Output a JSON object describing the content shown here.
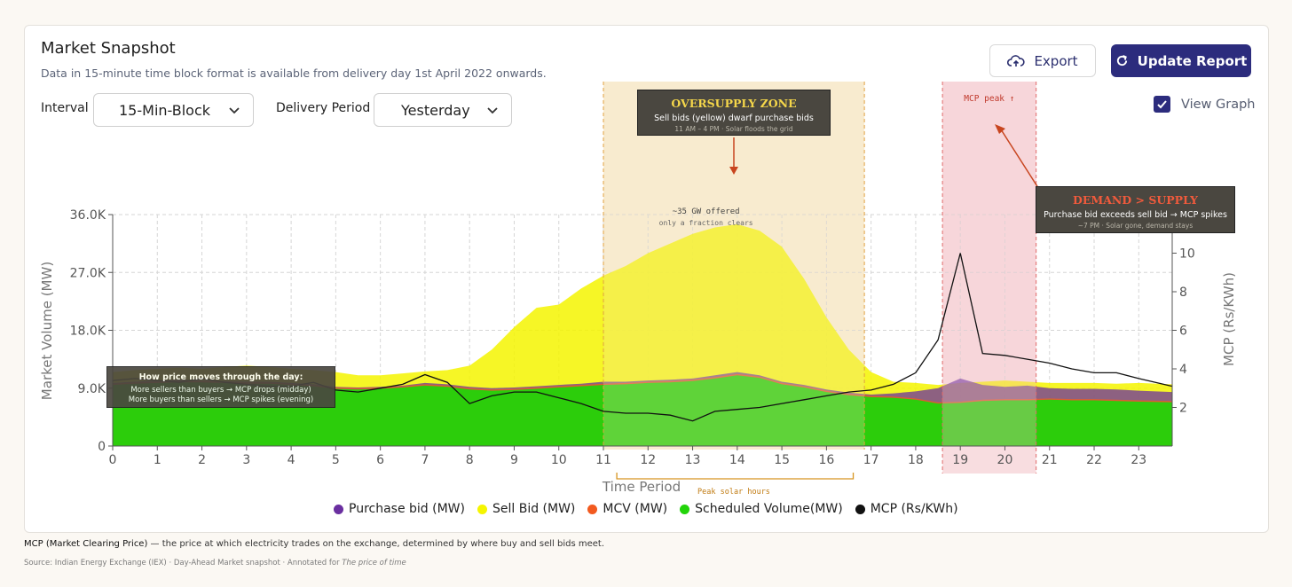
{
  "header": {
    "title": "Market Snapshot",
    "subtitle": "Data in 15-minute time block format is available from delivery day 1st April 2022 onwards."
  },
  "controls": {
    "interval_label": "Interval",
    "interval_value": "15-Min-Block",
    "delivery_label": "Delivery Period",
    "delivery_value": "Yesterday",
    "export_label": "Export",
    "update_label": "Update Report",
    "view_graph_label": "View Graph",
    "view_graph_checked": true
  },
  "colors": {
    "accent": "#2c2c7d",
    "purchase": "#6a2fa0",
    "sell": "#f5f500",
    "mcv": "#f25a1f",
    "scheduled": "#22d40a",
    "mcp": "#111111"
  },
  "annotations": {
    "oversupply_title": "OVERSUPPLY ZONE",
    "oversupply_line1": "Sell bids (yellow) dwarf purchase bids",
    "oversupply_line2": "11 AM – 4 PM · Solar floods the grid",
    "offered_line1": "~35 GW offered",
    "offered_line2": "only a fraction clears",
    "mcp_peak": "MCP peak ↑",
    "demand_title": "DEMAND > SUPPLY",
    "demand_line1": "Purchase bid exceeds sell bid → MCP spikes",
    "demand_line2": "~7 PM · Solar gone, demand stays",
    "howprice_title": "How price moves through the day:",
    "howprice_line1": "More sellers than buyers → MCP drops (midday)",
    "howprice_line2": "More buyers than sellers → MCP spikes (evening)",
    "peak_solar": "Peak solar hours"
  },
  "legend": [
    {
      "label": "Purchase bid (MW)",
      "color": "#6a2fa0"
    },
    {
      "label": "Sell Bid (MW)",
      "color": "#f5f500"
    },
    {
      "label": "MCV (MW)",
      "color": "#f25a1f"
    },
    {
      "label": "Scheduled Volume(MW)",
      "color": "#22d40a"
    },
    {
      "label": "MCP (Rs/KWh)",
      "color": "#111111"
    }
  ],
  "footnote": {
    "term": "MCP (Market Clearing Price)",
    "text": " — the price at which electricity trades on the exchange, determined by where buy and sell bids meet."
  },
  "source": {
    "text": "Source: Indian Energy Exchange (IEX) · Day-Ahead Market snapshot · Annotated for ",
    "italic": "The price of time"
  },
  "chart_data": {
    "type": "area",
    "title": "Market Snapshot",
    "xlabel": "Time Period",
    "ylabel_left": "Market Volume (MW)",
    "ylabel_right": "MCP (Rs/KWh)",
    "xlim": [
      0,
      23.75
    ],
    "ylim_left": [
      0,
      36000
    ],
    "ylim_right": [
      0,
      12
    ],
    "x_ticks": [
      "0",
      "1",
      "2",
      "3",
      "4",
      "5",
      "6",
      "7",
      "8",
      "9",
      "10",
      "11",
      "12",
      "13",
      "14",
      "15",
      "16",
      "17",
      "18",
      "19",
      "20",
      "21",
      "22",
      "23"
    ],
    "y_left_ticks": [
      {
        "value": 0,
        "label": "0"
      },
      {
        "value": 9000,
        "label": "9.0K"
      },
      {
        "value": 18000,
        "label": "18.0K"
      },
      {
        "value": 27000,
        "label": "27.0K"
      },
      {
        "value": 36000,
        "label": "36.0K"
      }
    ],
    "y_right_ticks": [
      2,
      4,
      6,
      8,
      10
    ],
    "x": [
      0,
      0.5,
      1,
      1.5,
      2,
      2.5,
      3,
      3.5,
      4,
      4.5,
      5,
      5.5,
      6,
      6.5,
      7,
      7.5,
      8,
      8.5,
      9,
      9.5,
      10,
      10.5,
      11,
      11.5,
      12,
      12.5,
      13,
      13.5,
      14,
      14.5,
      15,
      15.5,
      16,
      16.5,
      17,
      17.5,
      18,
      18.5,
      19,
      19.5,
      20,
      20.5,
      21,
      21.5,
      22,
      22.5,
      23,
      23.75
    ],
    "series": [
      {
        "name": "Sell Bid (MW)",
        "values": [
          11500,
          11800,
          12000,
          12200,
          12000,
          12300,
          12500,
          12300,
          12000,
          11800,
          11500,
          11000,
          11000,
          11300,
          11600,
          11800,
          12500,
          15000,
          18500,
          21500,
          22000,
          24500,
          26500,
          28000,
          30000,
          31500,
          33000,
          34000,
          34500,
          33500,
          31000,
          26000,
          20000,
          15000,
          11500,
          10000,
          9800,
          9500,
          9800,
          10000,
          10200,
          10000,
          9800,
          9800,
          9800,
          9700,
          9800,
          9600
        ]
      },
      {
        "name": "Purchase bid (MW)",
        "values": [
          9800,
          10000,
          10200,
          10300,
          10200,
          10100,
          10000,
          10000,
          9800,
          9600,
          9200,
          9100,
          9200,
          9400,
          9800,
          9600,
          9200,
          9000,
          9100,
          9300,
          9500,
          9700,
          10000,
          10000,
          10200,
          10300,
          10500,
          11000,
          11500,
          11000,
          10000,
          9500,
          8800,
          8300,
          8000,
          8200,
          8500,
          9000,
          10500,
          9500,
          9200,
          9400,
          9000,
          8900,
          8900,
          8800,
          8600,
          8400
        ]
      },
      {
        "name": "MCV (MW)",
        "values": [
          9700,
          9900,
          10000,
          10100,
          10100,
          10000,
          9900,
          9900,
          9700,
          9500,
          9100,
          9000,
          9100,
          9300,
          9600,
          9400,
          9000,
          8800,
          8900,
          9100,
          9300,
          9500,
          9700,
          9800,
          10000,
          10100,
          10300,
          10700,
          11200,
          10800,
          9800,
          9300,
          8600,
          8100,
          7800,
          7700,
          7400,
          6800,
          6900,
          7200,
          7300,
          7300,
          7400,
          7300,
          7300,
          7200,
          7100,
          7000
        ]
      },
      {
        "name": "Scheduled Volume(MW)",
        "values": [
          9500,
          9700,
          9800,
          9900,
          9900,
          9800,
          9700,
          9700,
          9500,
          9300,
          8900,
          8800,
          8900,
          9100,
          9400,
          9200,
          8800,
          8600,
          8700,
          8900,
          9100,
          9300,
          9500,
          9600,
          9800,
          9900,
          10100,
          10500,
          11000,
          10600,
          9600,
          9100,
          8400,
          7900,
          7600,
          7500,
          7200,
          6600,
          6700,
          7000,
          7100,
          7100,
          7200,
          7100,
          7100,
          7000,
          6900,
          6800
        ]
      },
      {
        "name": "MCP (Rs/KWh)",
        "values": [
          3.4,
          3.5,
          3.4,
          3.3,
          3.5,
          3.3,
          3.2,
          3.1,
          3.1,
          3.3,
          2.9,
          2.8,
          3.0,
          3.2,
          3.7,
          3.3,
          2.2,
          2.6,
          2.8,
          2.8,
          2.5,
          2.2,
          1.8,
          1.7,
          1.7,
          1.6,
          1.3,
          1.8,
          1.9,
          2.0,
          2.2,
          2.4,
          2.6,
          2.8,
          2.9,
          3.2,
          3.8,
          5.5,
          10.0,
          4.8,
          4.7,
          4.5,
          4.3,
          4.0,
          3.8,
          3.8,
          3.5,
          3.1
        ]
      }
    ]
  }
}
